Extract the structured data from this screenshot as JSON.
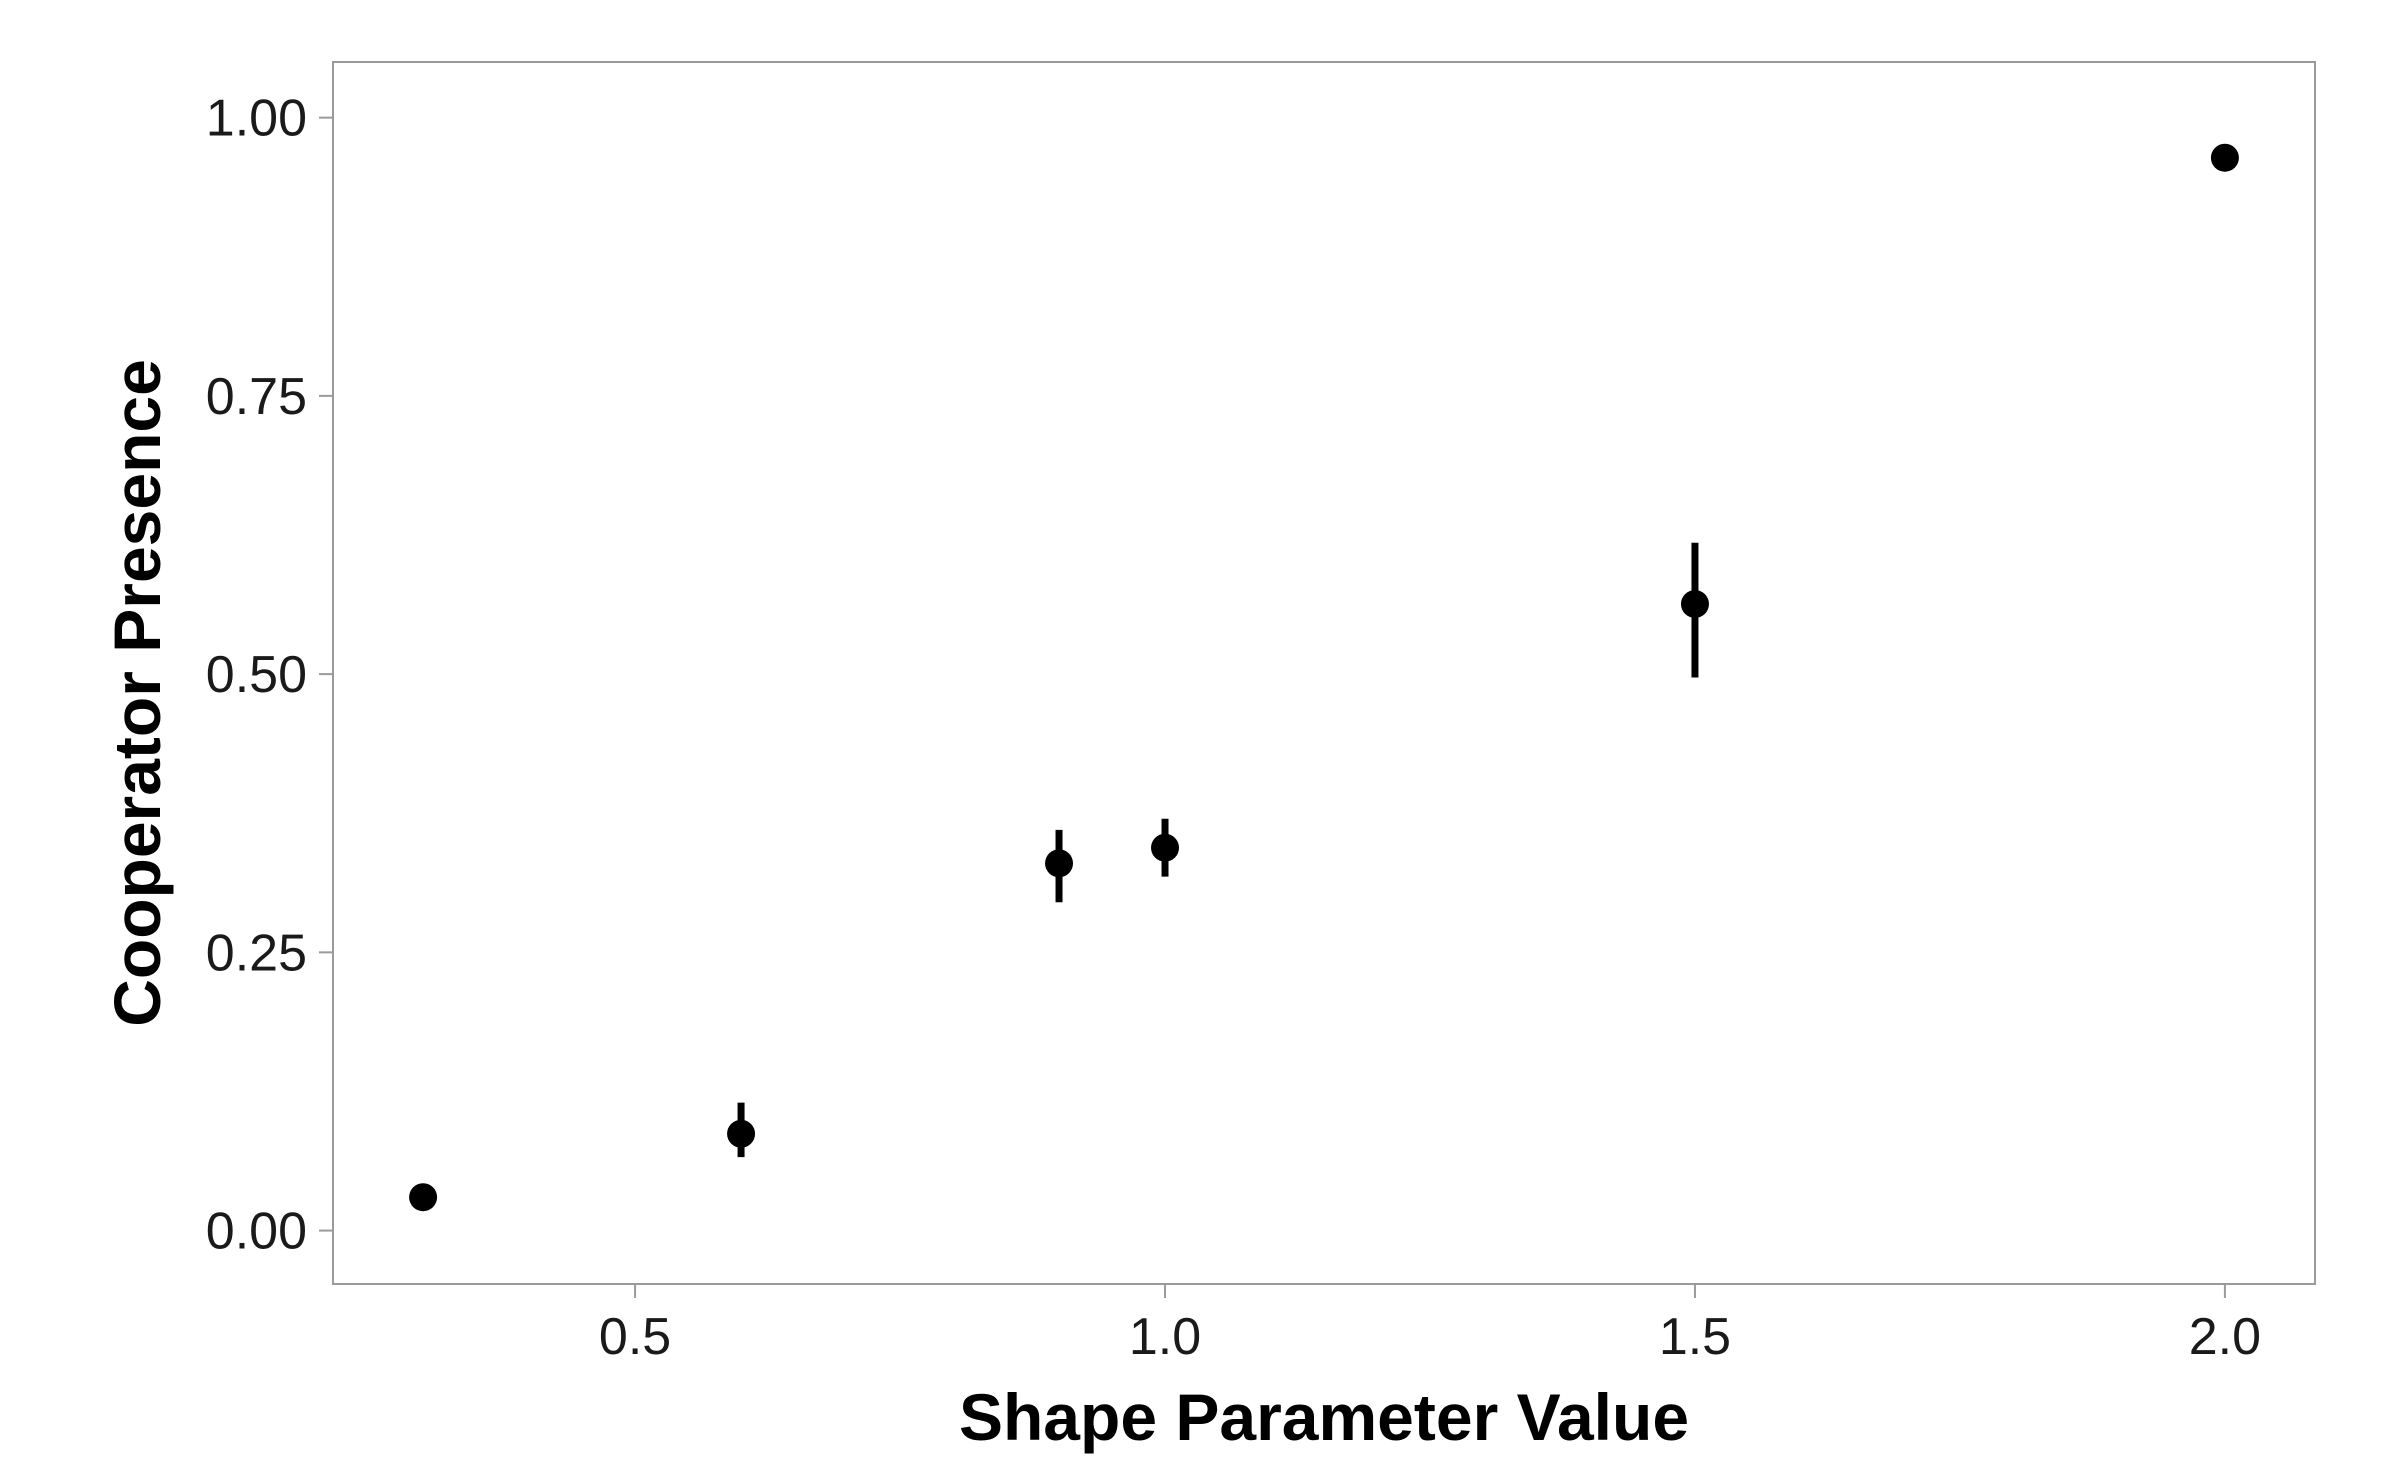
{
  "chart_data": {
    "type": "scatter",
    "title": "",
    "xlabel": "Shape Parameter Value",
    "ylabel": "Cooperator Presence",
    "xlim": [
      0.215,
      2.085
    ],
    "ylim": [
      -0.048,
      1.05
    ],
    "x_ticks": [
      0.5,
      1.0,
      1.5,
      2.0
    ],
    "x_tick_labels": [
      "0.5",
      "1.0",
      "1.5",
      "2.0"
    ],
    "y_ticks": [
      0.0,
      0.25,
      0.5,
      0.75,
      1.0
    ],
    "y_tick_labels": [
      "0.00",
      "0.25",
      "0.50",
      "0.75",
      "1.00"
    ],
    "grid": false,
    "legend": "none",
    "series": [
      {
        "points": [
          {
            "x": 0.3,
            "y": 0.03,
            "ylow": 0.03,
            "yhigh": 0.03
          },
          {
            "x": 0.6,
            "y": 0.087,
            "ylow": 0.066,
            "yhigh": 0.115
          },
          {
            "x": 0.9,
            "y": 0.33,
            "ylow": 0.295,
            "yhigh": 0.36
          },
          {
            "x": 1.0,
            "y": 0.344,
            "ylow": 0.318,
            "yhigh": 0.37
          },
          {
            "x": 1.5,
            "y": 0.563,
            "ylow": 0.497,
            "yhigh": 0.618
          },
          {
            "x": 2.0,
            "y": 0.964,
            "ylow": 0.964,
            "yhigh": 0.964
          }
        ]
      }
    ],
    "colors": {
      "points": "#000000",
      "frame": "#9a9a9a",
      "ticks": "#9a9a9a",
      "text": "#1a1a1a"
    }
  }
}
